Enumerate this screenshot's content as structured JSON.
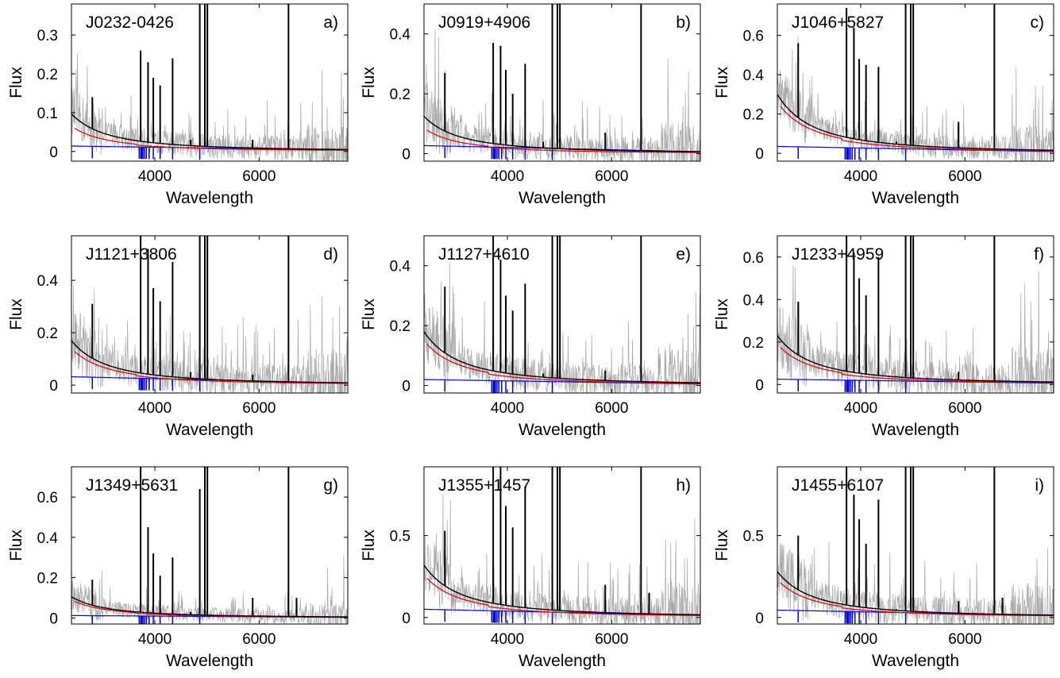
{
  "colors": {
    "observed": "#a8a8a8",
    "model_total": "#000000",
    "model_nebular": "#e00000",
    "model_stellar": "#0000e6",
    "axes": "#000000"
  },
  "chart_data": [
    {
      "type": "line",
      "object": "J0232-0426",
      "panel_label": "a)",
      "xlabel": "Wavelength",
      "ylabel": "Flux",
      "xlim": [
        2400,
        7700
      ],
      "ylim": [
        -0.025,
        0.38
      ],
      "xticks": [
        4000,
        6000
      ],
      "yticks": [
        0,
        0.1,
        0.2,
        0.3
      ],
      "ytick_labels": [
        "0",
        "0.1",
        "0.2",
        "0.3"
      ],
      "continuum_blue_end": 0.097,
      "nebular_blue_end": 0.065,
      "stellar_blue_end": 0.014,
      "noise_amplitude": 0.04,
      "emission_lines": [
        {
          "x": 2800,
          "y": 0.14
        },
        {
          "x": 3727,
          "y": 0.26
        },
        {
          "x": 3869,
          "y": 0.23
        },
        {
          "x": 3970,
          "y": 0.19
        },
        {
          "x": 4101,
          "y": 0.17
        },
        {
          "x": 4340,
          "y": 0.24
        },
        {
          "x": 4686,
          "y": 0.03
        },
        {
          "x": 4861,
          "y": 0.38
        },
        {
          "x": 4959,
          "y": 0.38
        },
        {
          "x": 5007,
          "y": 0.38
        },
        {
          "x": 5876,
          "y": 0.03
        },
        {
          "x": 6563,
          "y": 0.38
        }
      ]
    },
    {
      "type": "line",
      "object": "J0919+4906",
      "panel_label": "b)",
      "xlabel": "Wavelength",
      "ylabel": "Flux",
      "xlim": [
        2400,
        7700
      ],
      "ylim": [
        -0.025,
        0.5
      ],
      "xticks": [
        4000,
        6000
      ],
      "yticks": [
        0,
        0.2,
        0.4
      ],
      "ytick_labels": [
        "0",
        "0.2",
        "0.4"
      ],
      "continuum_blue_end": 0.125,
      "nebular_blue_end": 0.085,
      "stellar_blue_end": 0.027,
      "noise_amplitude": 0.06,
      "emission_lines": [
        {
          "x": 2800,
          "y": 0.27
        },
        {
          "x": 3727,
          "y": 0.37
        },
        {
          "x": 3869,
          "y": 0.36
        },
        {
          "x": 3970,
          "y": 0.28
        },
        {
          "x": 4101,
          "y": 0.2
        },
        {
          "x": 4340,
          "y": 0.3
        },
        {
          "x": 4686,
          "y": 0.04
        },
        {
          "x": 4861,
          "y": 0.5
        },
        {
          "x": 4959,
          "y": 0.5
        },
        {
          "x": 5007,
          "y": 0.5
        },
        {
          "x": 5876,
          "y": 0.07
        },
        {
          "x": 6563,
          "y": 0.5
        }
      ]
    },
    {
      "type": "line",
      "object": "J1046+5827",
      "panel_label": "c)",
      "xlabel": "Wavelength",
      "ylabel": "Flux",
      "xlim": [
        2400,
        7700
      ],
      "ylim": [
        -0.04,
        0.76
      ],
      "xticks": [
        4000,
        6000
      ],
      "yticks": [
        0,
        0.2,
        0.4,
        0.6
      ],
      "ytick_labels": [
        "0",
        "0.2",
        "0.4",
        "0.6"
      ],
      "continuum_blue_end": 0.3,
      "nebular_blue_end": 0.26,
      "stellar_blue_end": 0.035,
      "noise_amplitude": 0.08,
      "emission_lines": [
        {
          "x": 2800,
          "y": 0.56
        },
        {
          "x": 3727,
          "y": 0.74
        },
        {
          "x": 3869,
          "y": 0.64
        },
        {
          "x": 3970,
          "y": 0.48
        },
        {
          "x": 4101,
          "y": 0.45
        },
        {
          "x": 4340,
          "y": 0.44
        },
        {
          "x": 4686,
          "y": 0.06
        },
        {
          "x": 4861,
          "y": 0.76
        },
        {
          "x": 4959,
          "y": 0.76
        },
        {
          "x": 5007,
          "y": 0.76
        },
        {
          "x": 5876,
          "y": 0.16
        },
        {
          "x": 6563,
          "y": 0.76
        }
      ]
    },
    {
      "type": "line",
      "object": "J1121+3806",
      "panel_label": "d)",
      "xlabel": "Wavelength",
      "ylabel": "Flux",
      "xlim": [
        2400,
        7700
      ],
      "ylim": [
        -0.03,
        0.57
      ],
      "xticks": [
        4000,
        6000
      ],
      "yticks": [
        0,
        0.2,
        0.4
      ],
      "ytick_labels": [
        "0",
        "0.2",
        "0.4"
      ],
      "continuum_blue_end": 0.17,
      "nebular_blue_end": 0.14,
      "stellar_blue_end": 0.032,
      "noise_amplitude": 0.08,
      "emission_lines": [
        {
          "x": 2800,
          "y": 0.31
        },
        {
          "x": 3727,
          "y": 0.57
        },
        {
          "x": 3869,
          "y": 0.52
        },
        {
          "x": 3970,
          "y": 0.37
        },
        {
          "x": 4101,
          "y": 0.32
        },
        {
          "x": 4340,
          "y": 0.47
        },
        {
          "x": 4686,
          "y": 0.05
        },
        {
          "x": 4861,
          "y": 0.57
        },
        {
          "x": 4959,
          "y": 0.57
        },
        {
          "x": 5007,
          "y": 0.57
        },
        {
          "x": 5876,
          "y": 0.04
        },
        {
          "x": 6563,
          "y": 0.57
        }
      ]
    },
    {
      "type": "line",
      "object": "J1127+4610",
      "panel_label": "e)",
      "xlabel": "Wavelength",
      "ylabel": "Flux",
      "xlim": [
        2400,
        7700
      ],
      "ylim": [
        -0.025,
        0.5
      ],
      "xticks": [
        4000,
        6000
      ],
      "yticks": [
        0,
        0.2,
        0.4
      ],
      "ytick_labels": [
        "0",
        "0.2",
        "0.4"
      ],
      "continuum_blue_end": 0.18,
      "nebular_blue_end": 0.15,
      "stellar_blue_end": 0.02,
      "noise_amplitude": 0.07,
      "emission_lines": [
        {
          "x": 2800,
          "y": 0.33
        },
        {
          "x": 3727,
          "y": 0.5
        },
        {
          "x": 3869,
          "y": 0.42
        },
        {
          "x": 3970,
          "y": 0.3
        },
        {
          "x": 4101,
          "y": 0.25
        },
        {
          "x": 4340,
          "y": 0.34
        },
        {
          "x": 4686,
          "y": 0.04
        },
        {
          "x": 4861,
          "y": 0.5
        },
        {
          "x": 4959,
          "y": 0.5
        },
        {
          "x": 5007,
          "y": 0.5
        },
        {
          "x": 5876,
          "y": 0.05
        },
        {
          "x": 6563,
          "y": 0.5
        }
      ]
    },
    {
      "type": "line",
      "object": "J1233+4959",
      "panel_label": "f)",
      "xlabel": "Wavelength",
      "ylabel": "Flux",
      "xlim": [
        2400,
        7700
      ],
      "ylim": [
        -0.04,
        0.7
      ],
      "xticks": [
        4000,
        6000
      ],
      "yticks": [
        0,
        0.2,
        0.4,
        0.6
      ],
      "ytick_labels": [
        "0",
        "0.2",
        "0.4",
        "0.6"
      ],
      "continuum_blue_end": 0.23,
      "nebular_blue_end": 0.19,
      "stellar_blue_end": 0.025,
      "noise_amplitude": 0.1,
      "emission_lines": [
        {
          "x": 2800,
          "y": 0.39
        },
        {
          "x": 3727,
          "y": 0.7
        },
        {
          "x": 3869,
          "y": 0.62
        },
        {
          "x": 3970,
          "y": 0.5
        },
        {
          "x": 4101,
          "y": 0.42
        },
        {
          "x": 4340,
          "y": 0.6
        },
        {
          "x": 4686,
          "y": 0.04
        },
        {
          "x": 4861,
          "y": 0.7
        },
        {
          "x": 4959,
          "y": 0.7
        },
        {
          "x": 5007,
          "y": 0.7
        },
        {
          "x": 5876,
          "y": 0.06
        },
        {
          "x": 6563,
          "y": 0.7
        }
      ]
    },
    {
      "type": "line",
      "object": "J1349+5631",
      "panel_label": "g)",
      "xlabel": "Wavelength",
      "ylabel": "Flux",
      "xlim": [
        2400,
        7700
      ],
      "ylim": [
        -0.03,
        0.75
      ],
      "xticks": [
        4000,
        6000
      ],
      "yticks": [
        0,
        0.2,
        0.4,
        0.6
      ],
      "ytick_labels": [
        "0",
        "0.2",
        "0.4",
        "0.6"
      ],
      "continuum_blue_end": 0.105,
      "nebular_blue_end": 0.09,
      "stellar_blue_end": 0.012,
      "noise_amplitude": 0.05,
      "emission_lines": [
        {
          "x": 2800,
          "y": 0.19
        },
        {
          "x": 3727,
          "y": 0.75
        },
        {
          "x": 3869,
          "y": 0.45
        },
        {
          "x": 3970,
          "y": 0.32
        },
        {
          "x": 4101,
          "y": 0.21
        },
        {
          "x": 4340,
          "y": 0.3
        },
        {
          "x": 4686,
          "y": 0.03
        },
        {
          "x": 4861,
          "y": 0.64
        },
        {
          "x": 4959,
          "y": 0.75
        },
        {
          "x": 5007,
          "y": 0.75
        },
        {
          "x": 5876,
          "y": 0.1
        },
        {
          "x": 6563,
          "y": 0.75
        },
        {
          "x": 6717,
          "y": 0.1
        }
      ]
    },
    {
      "type": "line",
      "object": "J1355+1457",
      "panel_label": "h)",
      "xlabel": "Wavelength",
      "ylabel": "Flux",
      "xlim": [
        2400,
        7700
      ],
      "ylim": [
        -0.04,
        0.92
      ],
      "xticks": [
        4000,
        6000
      ],
      "yticks": [
        0,
        0.5
      ],
      "ytick_labels": [
        "0",
        "0.5"
      ],
      "continuum_blue_end": 0.32,
      "nebular_blue_end": 0.26,
      "stellar_blue_end": 0.05,
      "noise_amplitude": 0.12,
      "emission_lines": [
        {
          "x": 2800,
          "y": 0.53
        },
        {
          "x": 3727,
          "y": 0.92
        },
        {
          "x": 3869,
          "y": 0.92
        },
        {
          "x": 3970,
          "y": 0.68
        },
        {
          "x": 4101,
          "y": 0.55
        },
        {
          "x": 4340,
          "y": 0.8
        },
        {
          "x": 4686,
          "y": 0.05
        },
        {
          "x": 4861,
          "y": 0.92
        },
        {
          "x": 4959,
          "y": 0.92
        },
        {
          "x": 5007,
          "y": 0.92
        },
        {
          "x": 5876,
          "y": 0.2
        },
        {
          "x": 6563,
          "y": 0.92
        },
        {
          "x": 6717,
          "y": 0.15
        }
      ]
    },
    {
      "type": "line",
      "object": "J1455+6107",
      "panel_label": "i)",
      "xlabel": "Wavelength",
      "ylabel": "Flux",
      "xlim": [
        2400,
        7700
      ],
      "ylim": [
        -0.04,
        0.92
      ],
      "xticks": [
        4000,
        6000
      ],
      "yticks": [
        0,
        0.5
      ],
      "ytick_labels": [
        "0",
        "0.5"
      ],
      "continuum_blue_end": 0.28,
      "nebular_blue_end": 0.23,
      "stellar_blue_end": 0.045,
      "noise_amplitude": 0.12,
      "emission_lines": [
        {
          "x": 2800,
          "y": 0.5
        },
        {
          "x": 3727,
          "y": 0.92
        },
        {
          "x": 3869,
          "y": 0.75
        },
        {
          "x": 3970,
          "y": 0.6
        },
        {
          "x": 4101,
          "y": 0.45
        },
        {
          "x": 4340,
          "y": 0.72
        },
        {
          "x": 4686,
          "y": 0.05
        },
        {
          "x": 4861,
          "y": 0.92
        },
        {
          "x": 4959,
          "y": 0.92
        },
        {
          "x": 5007,
          "y": 0.92
        },
        {
          "x": 5876,
          "y": 0.1
        },
        {
          "x": 6563,
          "y": 0.92
        },
        {
          "x": 6717,
          "y": 0.12
        }
      ]
    }
  ]
}
